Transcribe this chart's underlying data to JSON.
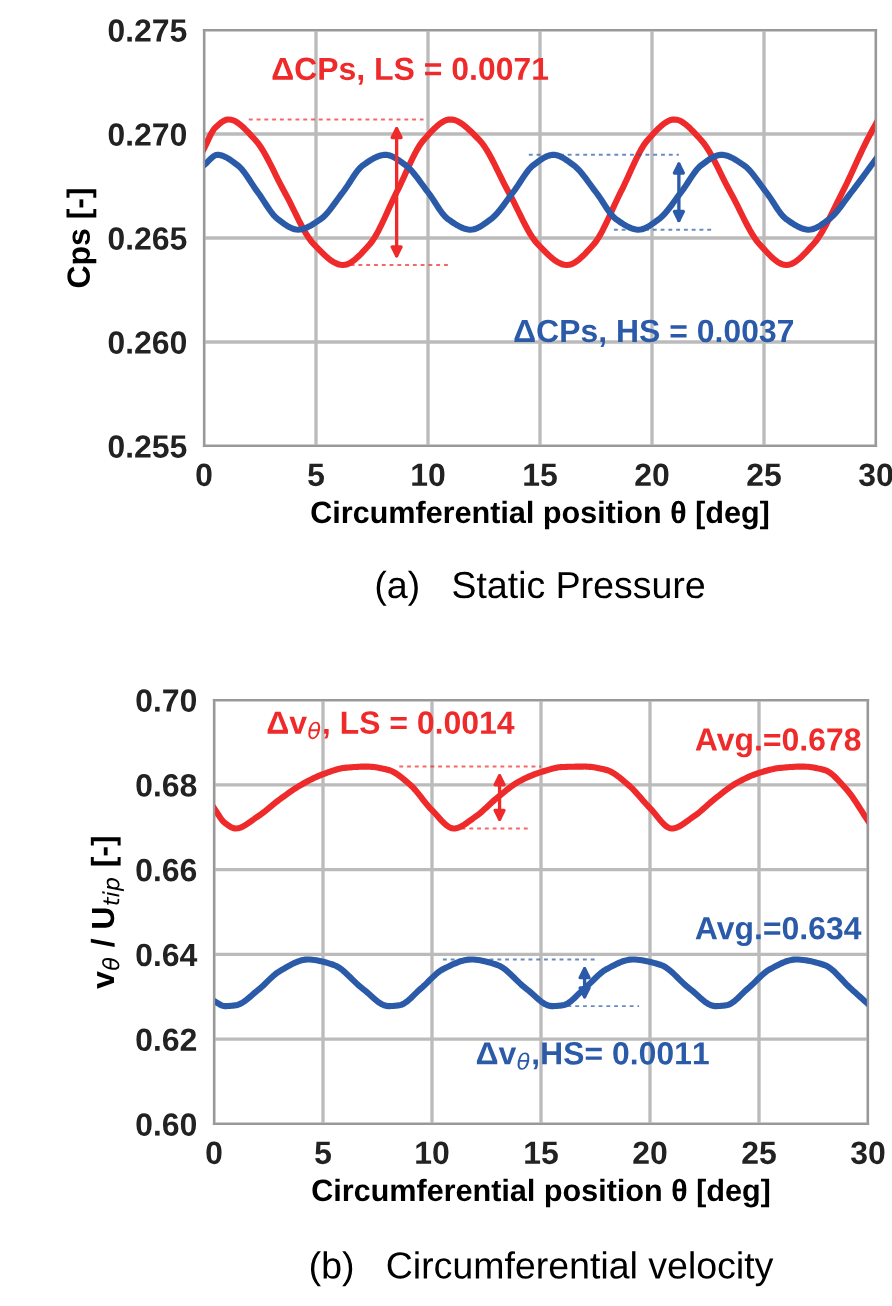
{
  "chart_data": [
    {
      "type": "line",
      "title": "(a)   Static Pressure",
      "xlabel": "Circumferential position θ [deg]",
      "ylabel": "Cps [-]",
      "xlim": [
        0,
        30
      ],
      "xticks": [
        0,
        5,
        10,
        15,
        20,
        25,
        30
      ],
      "ylim": [
        0.255,
        0.275
      ],
      "yticks": [
        0.255,
        {
          "value": 0.26,
          "label": "0.260"
        },
        0.265,
        {
          "value": 0.27,
          "label": "0.270"
        },
        0.275
      ],
      "grid": true,
      "legend": false,
      "line_style": "solid",
      "marker": "none",
      "annotations": [
        "ΔCPs, LS = 0.0071",
        "ΔCPs, HS = 0.0037"
      ],
      "series": [
        {
          "color": "#ee2a2a",
          "x": [
            0,
            0.5,
            1.1,
            2.3,
            3.6,
            4.9,
            6.2,
            7.4,
            8.6,
            9.8,
            11.0,
            12.3,
            13.6,
            14.9,
            16.2,
            17.4,
            18.6,
            19.8,
            21.0,
            22.2,
            23.5,
            24.8,
            26.0,
            27.2,
            28.5,
            29.6,
            30
          ],
          "values": [
            0.2693,
            0.2703,
            0.2707,
            0.2697,
            0.2672,
            0.2647,
            0.2637,
            0.2647,
            0.2672,
            0.2697,
            0.2707,
            0.2697,
            0.2672,
            0.2647,
            0.2637,
            0.2647,
            0.2672,
            0.2697,
            0.2707,
            0.2697,
            0.2672,
            0.2647,
            0.2637,
            0.2647,
            0.2672,
            0.2697,
            0.2705
          ]
        },
        {
          "color": "#2a5aa8",
          "x": [
            0,
            0.6,
            1.5,
            2.4,
            3.3,
            4.2,
            5.2,
            6.2,
            7.1,
            8.1,
            9.0,
            10.0,
            10.9,
            11.9,
            12.8,
            13.8,
            14.7,
            15.6,
            16.5,
            17.5,
            18.4,
            19.4,
            20.3,
            21.3,
            22.2,
            23.1,
            24.1,
            25.1,
            26.0,
            27.0,
            27.9,
            28.9,
            30
          ],
          "values": [
            0.2685,
            0.269,
            0.2685,
            0.2672,
            0.2659,
            0.2654,
            0.2659,
            0.2672,
            0.2685,
            0.269,
            0.2685,
            0.2672,
            0.2659,
            0.2654,
            0.2659,
            0.2672,
            0.2685,
            0.269,
            0.2685,
            0.2672,
            0.2659,
            0.2654,
            0.2659,
            0.2672,
            0.2685,
            0.269,
            0.2685,
            0.2672,
            0.2659,
            0.2654,
            0.2659,
            0.2672,
            0.2688
          ]
        }
      ]
    },
    {
      "type": "line",
      "title": "(b)   Circumferential velocity",
      "xlabel": "Circumferential position θ [deg]",
      "ylabel": "v$_{θ}$ / U$_{tip}$ [-]",
      "xlim": [
        0,
        30
      ],
      "xticks": [
        0,
        5,
        10,
        15,
        20,
        25,
        30
      ],
      "ylim": [
        0.6,
        0.7
      ],
      "yticks": [
        {
          "value": 0.6,
          "label": "0.60"
        },
        0.62,
        0.64,
        0.66,
        0.68,
        {
          "value": 0.7,
          "label": "0.70"
        }
      ],
      "grid": true,
      "legend": false,
      "line_style": "solid",
      "marker": "none",
      "annotations": [
        "Δv$_{θ}$, LS = 0.0014",
        "Δv$_{θ}$,HS= 0.0011",
        "Avg.=0.678",
        "Avg.=0.634"
      ],
      "series": [
        {
          "color": "#ee2a2a",
          "x": [
            0,
            0.5,
            1,
            2,
            3,
            4,
            5,
            6,
            7,
            8,
            9,
            10,
            11,
            12,
            13,
            14,
            15,
            16,
            17,
            18,
            19,
            20,
            21,
            22,
            23,
            24,
            25,
            26,
            27,
            28,
            29,
            30
          ],
          "values": [
            0.6745,
            0.671,
            0.6697,
            0.6725,
            0.6765,
            0.68,
            0.6825,
            0.684,
            0.6843,
            0.6835,
            0.68,
            0.674,
            0.6697,
            0.6725,
            0.677,
            0.6808,
            0.683,
            0.6842,
            0.6843,
            0.6835,
            0.68,
            0.6745,
            0.6697,
            0.6725,
            0.6768,
            0.6805,
            0.6828,
            0.684,
            0.6843,
            0.6835,
            0.679,
            0.6715
          ]
        },
        {
          "color": "#2a5aa8",
          "x": [
            0,
            0.5,
            1,
            2,
            3,
            4.3,
            5.5,
            6.8,
            8.0,
            8.5,
            9.5,
            10.5,
            11.8,
            13,
            14.3,
            15.5,
            16,
            17,
            18,
            19.2,
            20.5,
            21.8,
            23,
            23.5,
            24.5,
            25.5,
            26.7,
            28,
            29.2,
            30
          ],
          "values": [
            0.629,
            0.6278,
            0.628,
            0.6315,
            0.636,
            0.6388,
            0.6375,
            0.632,
            0.6278,
            0.628,
            0.632,
            0.6365,
            0.6388,
            0.6375,
            0.632,
            0.6278,
            0.628,
            0.632,
            0.6365,
            0.6388,
            0.6375,
            0.632,
            0.6278,
            0.628,
            0.632,
            0.6365,
            0.6388,
            0.6375,
            0.632,
            0.6283
          ]
        }
      ]
    }
  ]
}
